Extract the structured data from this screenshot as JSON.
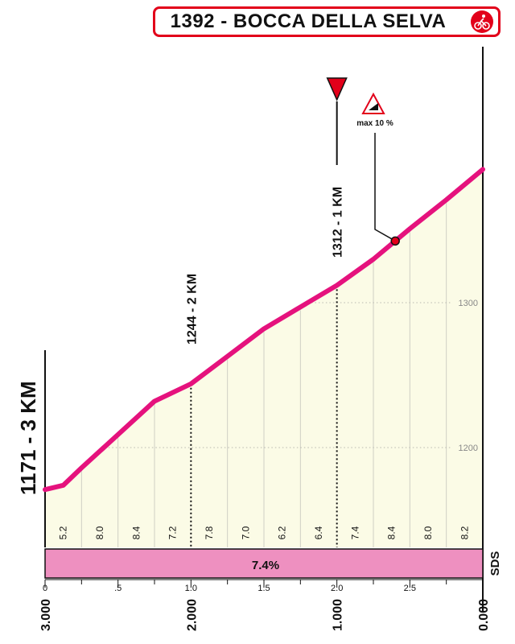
{
  "title": "1392 - BOCCA DELLA SELVA",
  "icon": "cyclist-icon",
  "chart_data": {
    "type": "area",
    "title": "1392 - BOCCA DELLA SELVA",
    "xlim": [
      0,
      3
    ],
    "ylim_ticks": [
      1200,
      1300
    ],
    "x": [
      0,
      0.125,
      0.25,
      0.5,
      0.75,
      1.0,
      1.25,
      1.5,
      1.75,
      2.0,
      2.25,
      2.5,
      2.75,
      3.0
    ],
    "y": [
      1171,
      1174,
      1186,
      1209,
      1232,
      1244,
      1263,
      1282,
      1297,
      1312,
      1330,
      1351,
      1371,
      1392
    ],
    "start_label": "1171 - 3 KM",
    "waypoints": [
      {
        "x": 1.0,
        "label": "1244 - 2 KM"
      },
      {
        "x": 2.0,
        "label": "1312 - 1 KM"
      }
    ],
    "max_gradient": {
      "x": 2.4,
      "label": "max 10 %"
    },
    "segment_gradients": [
      {
        "x": 0.125,
        "label": "5.2"
      },
      {
        "x": 0.375,
        "label": "8.0"
      },
      {
        "x": 0.625,
        "label": "8.4"
      },
      {
        "x": 0.875,
        "label": "7.2"
      },
      {
        "x": 1.125,
        "label": "7.8"
      },
      {
        "x": 1.375,
        "label": "7.0"
      },
      {
        "x": 1.625,
        "label": "6.2"
      },
      {
        "x": 1.875,
        "label": "6.4"
      },
      {
        "x": 2.125,
        "label": "7.4"
      },
      {
        "x": 2.375,
        "label": "8.4"
      },
      {
        "x": 2.625,
        "label": "8.0"
      },
      {
        "x": 2.875,
        "label": "8.2"
      }
    ],
    "average_gradient": "7.4%",
    "x_top_ticks": [
      {
        "x": 0,
        "label": "0"
      },
      {
        "x": 0.5,
        "label": ".5"
      },
      {
        "x": 1.0,
        "label": "1.0"
      },
      {
        "x": 1.5,
        "label": "1.5"
      },
      {
        "x": 2.0,
        "label": "2.0"
      },
      {
        "x": 2.5,
        "label": "2.5"
      }
    ],
    "x_bottom_ticks": [
      {
        "x": 0,
        "label": "3.000"
      },
      {
        "x": 1.0,
        "label": "2.000"
      },
      {
        "x": 2.0,
        "label": "1.000"
      },
      {
        "x": 3.0,
        "label": "0.000"
      }
    ],
    "brand": "SDS",
    "colors": {
      "profile_line": "#e5127d",
      "fill": "#fbfbe6",
      "gradient_band": "#ee90c0",
      "marker": "#e2001a",
      "frame": "#e2001a"
    }
  }
}
